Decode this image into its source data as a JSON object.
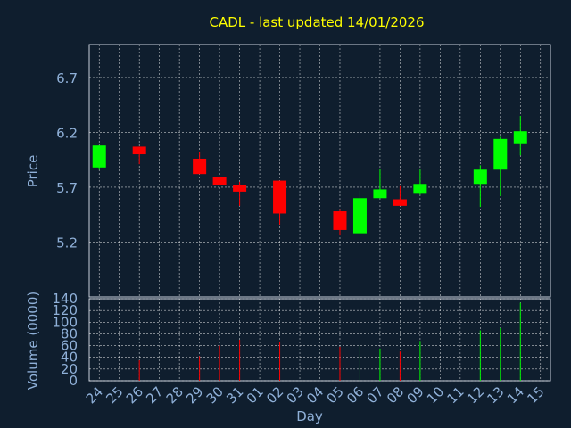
{
  "colors": {
    "background": "#0f1e2e",
    "title": "#ffff00",
    "axis_text": "#8fb0d8",
    "grid": "#ffffff",
    "up": "#00ff00",
    "down": "#ff0000"
  },
  "chart_data": [
    {
      "type": "candlestick",
      "title": "CADL - last updated 14/01/2026",
      "ylabel": "Price",
      "ylim": [
        4.7,
        7.0
      ],
      "yticks": [
        5.2,
        5.7,
        6.2,
        6.7
      ],
      "yticklabels": [
        "5.2",
        "5.7",
        "6.2",
        "6.7"
      ],
      "grid": true,
      "candles": [
        {
          "day": "24",
          "open": 5.88,
          "high": 6.08,
          "low": 5.86,
          "close": 6.08
        },
        {
          "day": "26",
          "open": 6.07,
          "high": 6.07,
          "low": 5.91,
          "close": 6.0
        },
        {
          "day": "29",
          "open": 5.96,
          "high": 6.02,
          "low": 5.82,
          "close": 5.82
        },
        {
          "day": "30",
          "open": 5.79,
          "high": 5.79,
          "low": 5.72,
          "close": 5.72
        },
        {
          "day": "31",
          "open": 5.72,
          "high": 5.75,
          "low": 5.53,
          "close": 5.66
        },
        {
          "day": "02",
          "open": 5.76,
          "high": 5.76,
          "low": 5.36,
          "close": 5.46
        },
        {
          "day": "05",
          "open": 5.48,
          "high": 5.5,
          "low": 5.26,
          "close": 5.31
        },
        {
          "day": "06",
          "open": 5.28,
          "high": 5.67,
          "low": 5.28,
          "close": 5.6
        },
        {
          "day": "07",
          "open": 5.6,
          "high": 5.87,
          "low": 5.6,
          "close": 5.68
        },
        {
          "day": "08",
          "open": 5.59,
          "high": 5.71,
          "low": 5.55,
          "close": 5.53
        },
        {
          "day": "09",
          "open": 5.64,
          "high": 5.86,
          "low": 5.63,
          "close": 5.73
        },
        {
          "day": "12",
          "open": 5.73,
          "high": 5.9,
          "low": 5.52,
          "close": 5.86
        },
        {
          "day": "13",
          "open": 5.86,
          "high": 6.16,
          "low": 5.62,
          "close": 6.14
        },
        {
          "day": "14",
          "open": 6.1,
          "high": 6.35,
          "low": 5.99,
          "close": 6.21
        }
      ]
    },
    {
      "type": "bar",
      "ylabel": "Volume (0000)",
      "xlabel": "Day",
      "ylim": [
        0,
        140
      ],
      "yticks": [
        0,
        20,
        40,
        60,
        80,
        100,
        120,
        140
      ],
      "yticklabels": [
        "0",
        "20",
        "40",
        "60",
        "80",
        "100",
        "120",
        "140"
      ],
      "grid": true,
      "categories": [
        "24",
        "25",
        "26",
        "27",
        "28",
        "29",
        "30",
        "31",
        "01",
        "02",
        "03",
        "04",
        "05",
        "06",
        "07",
        "08",
        "09",
        "10",
        "11",
        "12",
        "13",
        "14",
        "15"
      ],
      "values": [
        {
          "day": "26",
          "volume": 35,
          "direction": "down"
        },
        {
          "day": "29",
          "volume": 42,
          "direction": "down"
        },
        {
          "day": "30",
          "volume": 60,
          "direction": "down"
        },
        {
          "day": "31",
          "volume": 70,
          "direction": "down"
        },
        {
          "day": "02",
          "volume": 67,
          "direction": "down"
        },
        {
          "day": "05",
          "volume": 58,
          "direction": "down"
        },
        {
          "day": "06",
          "volume": 60,
          "direction": "up"
        },
        {
          "day": "07",
          "volume": 55,
          "direction": "up"
        },
        {
          "day": "08",
          "volume": 50,
          "direction": "down"
        },
        {
          "day": "09",
          "volume": 68,
          "direction": "up"
        },
        {
          "day": "12",
          "volume": 86,
          "direction": "up"
        },
        {
          "day": "13",
          "volume": 90,
          "direction": "up"
        },
        {
          "day": "14",
          "volume": 133,
          "direction": "up"
        }
      ]
    }
  ]
}
